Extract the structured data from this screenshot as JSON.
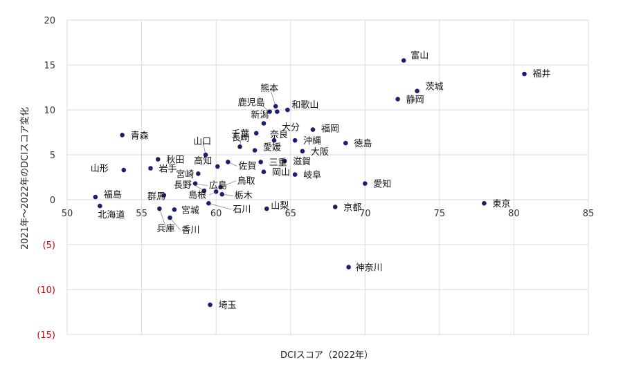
{
  "chart_data": {
    "type": "scatter",
    "xlabel": "DCIスコア（2022年）",
    "ylabel": "2021年～2022年のDCIスコア変化",
    "xlim": [
      50,
      85
    ],
    "ylim": [
      -15,
      20
    ],
    "x_ticks": [
      50,
      55,
      60,
      65,
      70,
      75,
      80,
      85
    ],
    "y_ticks": [
      20,
      15,
      10,
      5,
      0,
      -5,
      -10,
      -15
    ],
    "y_tick_labels": [
      "20",
      "15",
      "10",
      "5",
      "0",
      "(5)",
      "(10)",
      "(15)"
    ],
    "negative_tick_color": "#cc0000",
    "grid": true,
    "point_color": "#1a1f6e",
    "points": [
      {
        "name": "富山",
        "x": 72.6,
        "y": 15.5
      },
      {
        "name": "福井",
        "x": 80.7,
        "y": 14.0
      },
      {
        "name": "茨城",
        "x": 73.5,
        "y": 12.1
      },
      {
        "name": "静岡",
        "x": 72.2,
        "y": 11.2
      },
      {
        "name": "熊本",
        "x": 64.0,
        "y": 10.4
      },
      {
        "name": "鹿児島",
        "x": 63.6,
        "y": 9.8
      },
      {
        "name": "新潟",
        "x": 64.1,
        "y": 9.8
      },
      {
        "name": "和歌山",
        "x": 64.8,
        "y": 10.0
      },
      {
        "name": "大分",
        "x": 63.2,
        "y": 8.5
      },
      {
        "name": "福岡",
        "x": 66.5,
        "y": 7.8
      },
      {
        "name": "千葉",
        "x": 62.7,
        "y": 7.4
      },
      {
        "name": "青森",
        "x": 53.7,
        "y": 7.2
      },
      {
        "name": "奈良",
        "x": 63.9,
        "y": 6.6
      },
      {
        "name": "沖縄",
        "x": 65.3,
        "y": 6.6
      },
      {
        "name": "徳島",
        "x": 68.7,
        "y": 6.3
      },
      {
        "name": "長崎",
        "x": 61.6,
        "y": 5.9
      },
      {
        "name": "愛媛",
        "x": 62.6,
        "y": 5.5
      },
      {
        "name": "大阪",
        "x": 65.8,
        "y": 5.4
      },
      {
        "name": "山口",
        "x": 59.3,
        "y": 5.0
      },
      {
        "name": "秋田",
        "x": 56.1,
        "y": 4.5
      },
      {
        "name": "三重",
        "x": 63.0,
        "y": 4.2
      },
      {
        "name": "滋賀",
        "x": 64.6,
        "y": 4.3
      },
      {
        "name": "佐賀",
        "x": 60.8,
        "y": 4.2
      },
      {
        "name": "高知",
        "x": 60.1,
        "y": 3.7
      },
      {
        "name": "岩手",
        "x": 55.6,
        "y": 3.5
      },
      {
        "name": "山形",
        "x": 53.8,
        "y": 3.3
      },
      {
        "name": "岡山",
        "x": 63.2,
        "y": 3.1
      },
      {
        "name": "岐阜",
        "x": 65.3,
        "y": 2.8
      },
      {
        "name": "宮崎",
        "x": 58.8,
        "y": 2.9
      },
      {
        "name": "広島",
        "x": 58.6,
        "y": 1.8
      },
      {
        "name": "愛知",
        "x": 70.0,
        "y": 1.8
      },
      {
        "name": "鳥取",
        "x": 60.3,
        "y": 1.4
      },
      {
        "name": "長野",
        "x": 59.2,
        "y": 1.0
      },
      {
        "name": "栃木",
        "x": 60.4,
        "y": 0.6
      },
      {
        "name": "福島",
        "x": 51.9,
        "y": 0.3
      },
      {
        "name": "群馬",
        "x": 56.5,
        "y": 0.5
      },
      {
        "name": "島根",
        "x": 60.0,
        "y": 0.9
      },
      {
        "name": "石川",
        "x": 59.5,
        "y": -0.4
      },
      {
        "name": "東京",
        "x": 78.0,
        "y": -0.4
      },
      {
        "name": "北海道",
        "x": 52.2,
        "y": -0.7
      },
      {
        "name": "京都",
        "x": 68.0,
        "y": -0.8
      },
      {
        "name": "山梨",
        "x": 63.4,
        "y": -1.0
      },
      {
        "name": "宮城",
        "x": 57.2,
        "y": -1.1
      },
      {
        "name": "兵庫",
        "x": 56.2,
        "y": -1.0
      },
      {
        "name": "香川",
        "x": 56.9,
        "y": -2.0
      },
      {
        "name": "神奈川",
        "x": 68.9,
        "y": -7.5
      },
      {
        "name": "埼玉",
        "x": 59.6,
        "y": -11.7
      }
    ]
  }
}
